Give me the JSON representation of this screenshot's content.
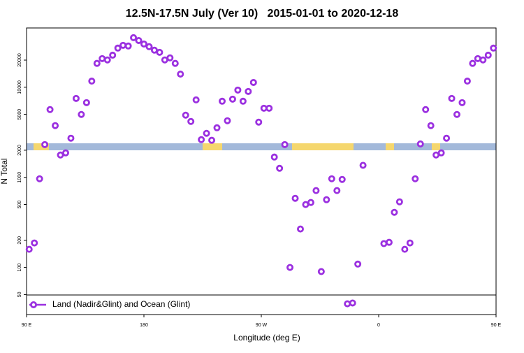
{
  "chart_data": {
    "type": "scatter",
    "title": "12.5N-17.5N July (Ver 10)   2015-01-01 to 2020-12-18",
    "x_label": "Longitude (deg E)",
    "y_label": "N Total",
    "log_y": true,
    "legend": "bottom-left",
    "xlim": [
      90,
      450
    ],
    "ylim": [
      30,
      45500
    ],
    "xticks": [
      {
        "value": 90,
        "label": "90 E"
      },
      {
        "value": 180,
        "label": "180"
      },
      {
        "value": 270,
        "label": "90 W"
      },
      {
        "value": 360,
        "label": "0"
      },
      {
        "value": 450,
        "label": "90 E"
      }
    ],
    "yticks": [
      50,
      100,
      200,
      500,
      1000,
      2000,
      5000,
      10000,
      20000
    ],
    "x": [
      92,
      96,
      100,
      104,
      108,
      112,
      116,
      120,
      124,
      128,
      132,
      136,
      140,
      144,
      148,
      152,
      156,
      160,
      164,
      168,
      172,
      176,
      180,
      184,
      188,
      192,
      196,
      200,
      204,
      208,
      212,
      216,
      220,
      224,
      228,
      232,
      236,
      240,
      244,
      248,
      252,
      256,
      260,
      264,
      268,
      272,
      276,
      280,
      284,
      288,
      292,
      296,
      300,
      304,
      308,
      312,
      316,
      320,
      324,
      328,
      332,
      336,
      340,
      344,
      348,
      364,
      368,
      372,
      376,
      380,
      384,
      388,
      392,
      396,
      400,
      404,
      408,
      412,
      416,
      420,
      424,
      428,
      432,
      436,
      440,
      444,
      448
    ],
    "series": [
      {
        "name": "Land (Nadir&Glint) and Ocean (Glint)",
        "color": "#9b30e0",
        "values": [
          159,
          187,
          964,
          2310,
          5650,
          3750,
          1770,
          1870,
          2720,
          7510,
          4990,
          6750,
          11700,
          18400,
          20800,
          20100,
          22700,
          27200,
          29200,
          28700,
          35500,
          33000,
          30200,
          28200,
          25800,
          24400,
          20100,
          21200,
          18400,
          14000,
          4900,
          4170,
          7240,
          2620,
          3080,
          2580,
          3550,
          7000,
          4250,
          7380,
          9310,
          7000,
          8980,
          11300,
          4100,
          5850,
          5850,
          1680,
          1260,
          2310,
          100,
          585,
          267,
          499,
          526,
          713,
          90,
          565,
          964,
          713,
          948,
          39.5,
          40.3,
          109,
          1360,
          184,
          190,
          409,
          535,
          159,
          187,
          964,
          2350,
          5650,
          3750,
          1770,
          1870,
          2720,
          7510,
          4990,
          6750,
          11700,
          18400,
          20800,
          20100,
          22700,
          27200
        ]
      }
    ]
  }
}
